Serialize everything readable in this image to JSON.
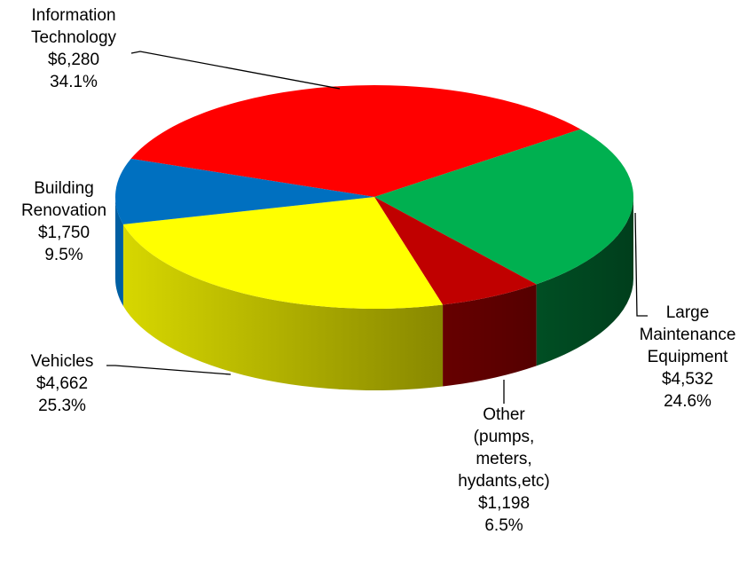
{
  "chart_data": {
    "type": "pie3d",
    "categories": [
      "Information Technology",
      "Large Maintenance Equipment",
      "Other (pumps, meters, hydants,etc)",
      "Vehicles",
      "Building Renovation"
    ],
    "values": [
      6280,
      4532,
      1198,
      4662,
      1750
    ],
    "value_labels": [
      "$6,280",
      "$4,532",
      "$1,198",
      "$4,662",
      "$1,750"
    ],
    "percentages": [
      34.1,
      24.6,
      6.5,
      25.3,
      9.5
    ],
    "percentage_labels": [
      "34.1%",
      "24.6%",
      "6.5%",
      "25.3%",
      "9.5%"
    ],
    "colors": [
      "#ff0000",
      "#00b050",
      "#c00000",
      "#ffff00",
      "#0070c0"
    ]
  }
}
